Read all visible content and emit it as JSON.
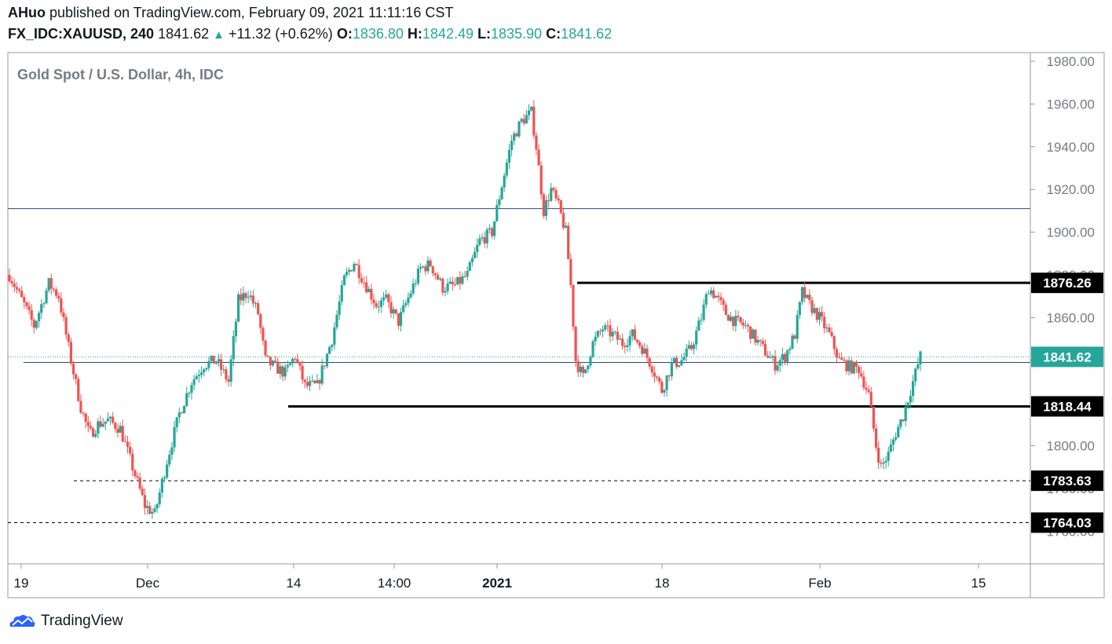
{
  "header": {
    "author": "AHuo",
    "published_text": "published on TradingView.com, February 09, 2021 11:11:16 CST",
    "symbol": "FX_IDC:XAUUSD, 240",
    "last": "1841.62",
    "change": "+11.32 (+0.62%)",
    "o_label": "O:",
    "o_value": "1836.80",
    "h_label": "H:",
    "h_value": "1842.49",
    "l_label": "L:",
    "l_value": "1835.90",
    "c_label": "C:",
    "c_value": "1841.62"
  },
  "footer": {
    "brand": "TradingView",
    "logo_icon": "tradingview-cloud-icon"
  },
  "colors": {
    "up": "#26a69a",
    "down": "#ef5350",
    "axis": "#787b86",
    "hline": "#2a4a7a"
  },
  "chart_data": {
    "type": "candlestick",
    "title": "Gold Spot / U.S. Dollar, 4h, IDC",
    "y_ticks": [
      "1980.00",
      "1960.00",
      "1940.00",
      "1920.00",
      "1900.00",
      "1880.00",
      "1860.00",
      "1840.00",
      "1820.00",
      "1800.00",
      "1780.00",
      "1760.00"
    ],
    "y_range": [
      1754,
      1990
    ],
    "x_ticks": [
      "19",
      "Dec",
      "14",
      "14:00",
      "2021",
      "18",
      "Feb",
      "15"
    ],
    "price_labels": [
      {
        "value": 1876.26,
        "text": "1876.26",
        "style": "dark"
      },
      {
        "value": 1841.62,
        "text": "1841.62",
        "style": "current"
      },
      {
        "value": 1818.44,
        "text": "1818.44",
        "style": "dark"
      },
      {
        "value": 1783.63,
        "text": "1783.63",
        "style": "dark"
      },
      {
        "value": 1764.03,
        "text": "1764.03",
        "style": "dark"
      }
    ],
    "levels": [
      {
        "value": 1911,
        "style": "thin"
      },
      {
        "value": 1876.26,
        "style": "bold"
      },
      {
        "value": 1839,
        "style": "thin"
      },
      {
        "value": 1818.44,
        "style": "bold"
      },
      {
        "value": 1783.63,
        "style": "dashed"
      },
      {
        "value": 1764.03,
        "style": "dashed"
      }
    ],
    "path": [
      [
        0,
        1880
      ],
      [
        12,
        1866
      ],
      [
        20,
        1856
      ],
      [
        32,
        1876
      ],
      [
        40,
        1870
      ],
      [
        50,
        1840
      ],
      [
        58,
        1818
      ],
      [
        65,
        1805
      ],
      [
        72,
        1810
      ],
      [
        80,
        1812
      ],
      [
        90,
        1808
      ],
      [
        100,
        1790
      ],
      [
        110,
        1772
      ],
      [
        118,
        1768
      ],
      [
        128,
        1793
      ],
      [
        138,
        1815
      ],
      [
        148,
        1830
      ],
      [
        158,
        1838
      ],
      [
        168,
        1840
      ],
      [
        178,
        1830
      ],
      [
        186,
        1868
      ],
      [
        194,
        1872
      ],
      [
        202,
        1862
      ],
      [
        208,
        1840
      ],
      [
        215,
        1837
      ],
      [
        224,
        1834
      ],
      [
        232,
        1842
      ],
      [
        240,
        1828
      ],
      [
        250,
        1828
      ],
      [
        262,
        1850
      ],
      [
        272,
        1878
      ],
      [
        280,
        1886
      ],
      [
        288,
        1877
      ],
      [
        298,
        1866
      ],
      [
        306,
        1868
      ],
      [
        316,
        1858
      ],
      [
        326,
        1872
      ],
      [
        334,
        1883
      ],
      [
        342,
        1885
      ],
      [
        352,
        1874
      ],
      [
        362,
        1875
      ],
      [
        372,
        1880
      ],
      [
        382,
        1896
      ],
      [
        392,
        1900
      ],
      [
        400,
        1922
      ],
      [
        408,
        1943
      ],
      [
        416,
        1952
      ],
      [
        424,
        1956
      ],
      [
        428,
        1940
      ],
      [
        434,
        1910
      ],
      [
        440,
        1920
      ],
      [
        446,
        1912
      ],
      [
        452,
        1900
      ],
      [
        456,
        1875
      ],
      [
        460,
        1840
      ],
      [
        466,
        1832
      ],
      [
        474,
        1848
      ],
      [
        482,
        1855
      ],
      [
        490,
        1852
      ],
      [
        498,
        1848
      ],
      [
        506,
        1852
      ],
      [
        514,
        1846
      ],
      [
        522,
        1837
      ],
      [
        530,
        1826
      ],
      [
        538,
        1838
      ],
      [
        546,
        1840
      ],
      [
        554,
        1846
      ],
      [
        562,
        1860
      ],
      [
        568,
        1874
      ],
      [
        574,
        1870
      ],
      [
        582,
        1862
      ],
      [
        590,
        1858
      ],
      [
        598,
        1856
      ],
      [
        606,
        1850
      ],
      [
        614,
        1844
      ],
      [
        622,
        1838
      ],
      [
        630,
        1842
      ],
      [
        638,
        1852
      ],
      [
        644,
        1872
      ],
      [
        650,
        1866
      ],
      [
        658,
        1860
      ],
      [
        666,
        1852
      ],
      [
        674,
        1840
      ],
      [
        682,
        1837
      ],
      [
        690,
        1836
      ],
      [
        698,
        1824
      ],
      [
        704,
        1800
      ],
      [
        708,
        1790
      ],
      [
        714,
        1796
      ],
      [
        720,
        1806
      ],
      [
        726,
        1814
      ],
      [
        734,
        1830
      ],
      [
        740,
        1842
      ]
    ]
  }
}
